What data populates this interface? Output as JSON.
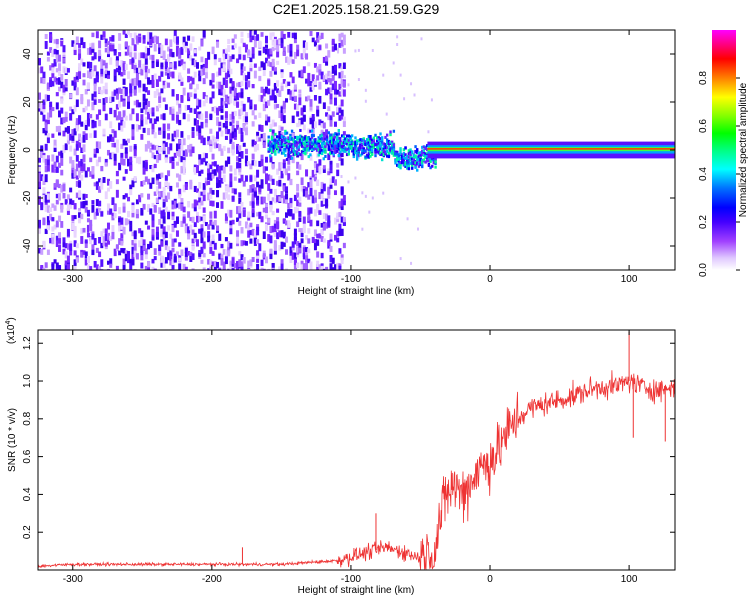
{
  "title": "C2E1.2025.158.21.59.G29",
  "chart_data": [
    {
      "type": "heatmap",
      "xlabel": "Height of straight line (km)",
      "ylabel": "Frequency (Hz)",
      "xlim": [
        -325,
        133
      ],
      "ylim": [
        -50,
        50
      ],
      "xticks": [
        -300,
        -200,
        -100,
        0,
        100
      ],
      "yticks": [
        -40,
        -20,
        0,
        20,
        40
      ],
      "colorbar": {
        "label": "Normalized spectral amplitude",
        "range": [
          0,
          1
        ],
        "ticks": [
          0.0,
          0.2,
          0.4,
          0.6,
          0.8
        ],
        "colors": [
          "#ffffff",
          "#b060ff",
          "#4400ff",
          "#0000ff",
          "#00c8ff",
          "#00ff70",
          "#80ff00",
          "#ffff00",
          "#ff8000",
          "#ff0000",
          "#ff00ff"
        ]
      },
      "regions": [
        {
          "x": [
            -325,
            -110
          ],
          "freq_spread": [
            -50,
            50
          ],
          "amplitude": [
            0.05,
            0.2
          ],
          "description_values": "scattered noise"
        },
        {
          "x": [
            -160,
            -40
          ],
          "freq_center": 2,
          "freq_spread": [
            -10,
            10
          ],
          "amplitude": [
            0.2,
            0.45
          ]
        },
        {
          "x": [
            -40,
            133
          ],
          "freq_center": 0.5,
          "freq_spread": [
            -2,
            2
          ],
          "amplitude": [
            0.6,
            0.95
          ]
        }
      ]
    },
    {
      "type": "line",
      "xlabel": "Height of straight line (km)",
      "ylabel": "SNR (10 * v/v)",
      "y_multiplier": "(x10^4)",
      "y_multiplier_base": "(x10",
      "y_multiplier_exp": "4",
      "y_multiplier_close": ")",
      "xlim": [
        -325,
        133
      ],
      "ylim": [
        0.0,
        1.27
      ],
      "xticks": [
        -300,
        -200,
        -100,
        0,
        100
      ],
      "yticks": [
        0.2,
        0.4,
        0.6,
        0.8,
        1.0,
        1.2
      ],
      "color": "#ee3333",
      "series": [
        {
          "x": [
            -325,
            -300,
            -250,
            -200,
            -150,
            -110,
            -90,
            -75,
            -60,
            -50,
            -40,
            -35,
            -30,
            -25,
            -20,
            -15,
            -10,
            -5,
            0,
            5,
            10,
            20,
            30,
            40,
            50,
            60,
            70,
            80,
            90,
            100,
            110,
            120,
            133
          ],
          "values": [
            0.02,
            0.03,
            0.03,
            0.03,
            0.03,
            0.05,
            0.09,
            0.12,
            0.09,
            0.06,
            0.1,
            0.3,
            0.42,
            0.45,
            0.4,
            0.45,
            0.52,
            0.55,
            0.58,
            0.62,
            0.7,
            0.8,
            0.86,
            0.88,
            0.9,
            0.92,
            0.95,
            0.97,
            0.97,
            1.0,
            0.97,
            0.95,
            0.97
          ]
        }
      ],
      "spikes": [
        {
          "x": -178,
          "value": 0.12
        },
        {
          "x": -82,
          "value": 0.3
        },
        {
          "x": 100,
          "value": 1.26
        },
        {
          "x": 103,
          "value": 0.7
        },
        {
          "x": 126,
          "value": 0.68
        }
      ]
    }
  ]
}
